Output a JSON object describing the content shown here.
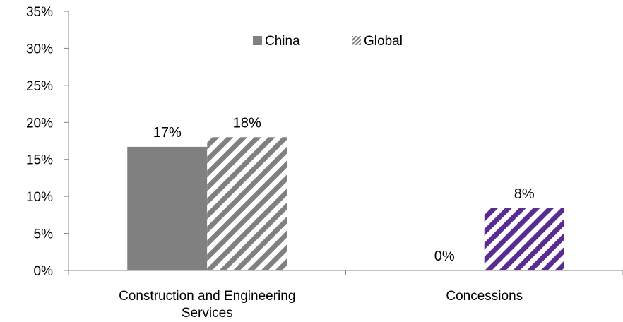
{
  "chart_data": {
    "type": "bar",
    "title": "",
    "xlabel": "",
    "ylabel": "",
    "ylim": [
      0,
      35
    ],
    "yticks": [
      "0%",
      "5%",
      "10%",
      "15%",
      "20%",
      "25%",
      "30%",
      "35%"
    ],
    "categories": [
      "Construction and Engineering Services",
      "Concessions"
    ],
    "category_lines": [
      [
        "Construction and Engineering",
        "Services"
      ],
      [
        "Concessions"
      ]
    ],
    "series": [
      {
        "name": "China",
        "values": [
          16.7,
          0
        ],
        "data_labels": [
          "17%",
          "0%"
        ],
        "color": "#808080",
        "pattern": "solid"
      },
      {
        "name": "Global",
        "values": [
          18.0,
          8.4
        ],
        "data_labels": [
          "18%",
          "8%"
        ],
        "colors": [
          "#808080",
          "#5b2c8f"
        ],
        "pattern": "diagonal-stripes"
      }
    ],
    "legend": {
      "position": "top-center"
    },
    "grid": false
  }
}
